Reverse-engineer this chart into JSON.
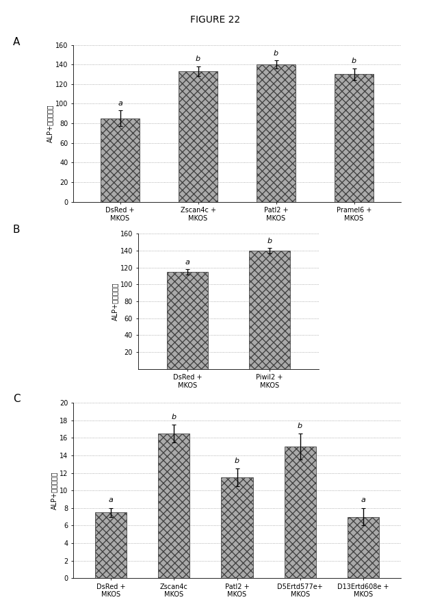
{
  "title": "FIGURE 22",
  "panel_A": {
    "categories": [
      "DsRed +\nMKOS",
      "Zscan4c +\nMKOS",
      "Patl2 +\nMKOS",
      "Pramel6 +\nMKOS"
    ],
    "values": [
      85,
      133,
      140,
      130
    ],
    "errors": [
      8,
      5,
      4,
      6
    ],
    "labels": [
      "a",
      "b",
      "b",
      "b"
    ],
    "ylabel": "ALP+コロニー数",
    "ylim": [
      0,
      160
    ],
    "yticks": [
      0,
      20,
      40,
      60,
      80,
      100,
      120,
      140,
      160
    ],
    "panel_label": "A"
  },
  "panel_B": {
    "categories": [
      "DsRed +\nMKOS",
      "Piwil2 +\nMKOS"
    ],
    "values": [
      115,
      140
    ],
    "errors": [
      3,
      3
    ],
    "labels": [
      "a",
      "b"
    ],
    "ylabel": "ALP+コロニー数",
    "ylim": [
      0,
      160
    ],
    "yticks": [
      20,
      40,
      60,
      80,
      100,
      120,
      140,
      160
    ],
    "panel_label": "B"
  },
  "panel_C": {
    "categories": [
      "DsRed +\nMKOS",
      "Zscan4c\nMKOS",
      "Patl2 +\nMKOS",
      "D5Ertd577e+\nMKOS",
      "D13Ertd608e +\nMKOS"
    ],
    "values": [
      7.5,
      16.5,
      11.5,
      15.0,
      7.0
    ],
    "errors": [
      0.5,
      1.0,
      1.0,
      1.5,
      1.0
    ],
    "labels": [
      "a",
      "b",
      "b",
      "b",
      "a"
    ],
    "ylabel": "ALP+コロニー数",
    "ylim": [
      0,
      20
    ],
    "yticks": [
      0,
      2,
      4,
      6,
      8,
      10,
      12,
      14,
      16,
      18,
      20
    ],
    "panel_label": "C"
  },
  "bar_color": "#aaaaaa",
  "bar_hatch": "xxx",
  "background_color": "#ffffff",
  "grid_color": "#999999",
  "label_fontsize": 8,
  "tick_fontsize": 7,
  "ylabel_fontsize": 7,
  "title_fontsize": 10
}
